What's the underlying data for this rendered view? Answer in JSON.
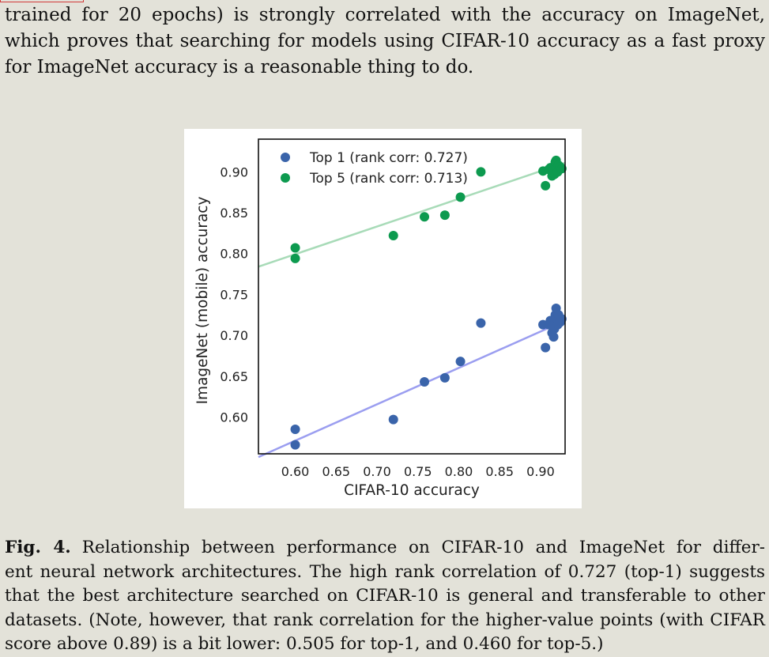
{
  "intro": {
    "lines": [
      "trained for 20 epochs) is strongly correlated with the accuracy on ImageNet,",
      "which proves that searching for models using CIFAR-10 accuracy as a fast proxy",
      "for ImageNet accuracy is a reasonable thing to do."
    ]
  },
  "caption": {
    "label": "Fig. 4.",
    "lines": [
      "Relationship between performance on CIFAR-10 and ImageNet for differ-",
      "ent neural network architectures. The high rank correlation of 0.727 (top-1) suggests",
      "that the best architecture searched on CIFAR-10 is general and transferable to other",
      "datasets. (Note, however, that rank correlation for the higher-value points (with CIFAR",
      "score above 0.89) is a bit lower: 0.505 for top-1, and 0.460 for top-5.)"
    ]
  },
  "chart_data": {
    "type": "scatter",
    "title": "",
    "xlabel": "CIFAR-10 accuracy",
    "ylabel": "ImageNet (mobile) accuracy",
    "xlim": [
      0.555,
      0.93
    ],
    "ylim": [
      0.555,
      0.94
    ],
    "x_ticks": [
      "0.60",
      "0.65",
      "0.70",
      "0.75",
      "0.80",
      "0.85",
      "0.90"
    ],
    "y_ticks": [
      "0.60",
      "0.65",
      "0.70",
      "0.75",
      "0.80",
      "0.85",
      "0.90"
    ],
    "grid": false,
    "legend_position": "top-left",
    "series": [
      {
        "name": "Top 1 (rank corr: 0.727)",
        "color": "#3a64aa",
        "fit_line": {
          "x": [
            0.555,
            0.93
          ],
          "y": [
            0.551,
            0.718
          ],
          "color": "#9b9ef0"
        },
        "points": [
          [
            0.6,
            0.585
          ],
          [
            0.6,
            0.566
          ],
          [
            0.72,
            0.597
          ],
          [
            0.758,
            0.643
          ],
          [
            0.783,
            0.648
          ],
          [
            0.802,
            0.668
          ],
          [
            0.827,
            0.715
          ],
          [
            0.903,
            0.713
          ],
          [
            0.906,
            0.685
          ],
          [
            0.91,
            0.713
          ],
          [
            0.912,
            0.718
          ],
          [
            0.914,
            0.703
          ],
          [
            0.915,
            0.712
          ],
          [
            0.916,
            0.698
          ],
          [
            0.917,
            0.708
          ],
          [
            0.918,
            0.725
          ],
          [
            0.919,
            0.733
          ],
          [
            0.92,
            0.72
          ],
          [
            0.921,
            0.713
          ],
          [
            0.922,
            0.725
          ],
          [
            0.924,
            0.716
          ],
          [
            0.926,
            0.72
          ]
        ]
      },
      {
        "name": "Top 5 (rank corr: 0.713)",
        "color": "#0d9a4f",
        "fit_line": {
          "x": [
            0.555,
            0.93
          ],
          "y": [
            0.784,
            0.911
          ],
          "color": "#a8dbb8"
        },
        "points": [
          [
            0.6,
            0.807
          ],
          [
            0.6,
            0.794
          ],
          [
            0.72,
            0.822
          ],
          [
            0.758,
            0.845
          ],
          [
            0.783,
            0.847
          ],
          [
            0.802,
            0.869
          ],
          [
            0.827,
            0.9
          ],
          [
            0.903,
            0.901
          ],
          [
            0.906,
            0.883
          ],
          [
            0.91,
            0.903
          ],
          [
            0.912,
            0.905
          ],
          [
            0.914,
            0.895
          ],
          [
            0.915,
            0.898
          ],
          [
            0.916,
            0.902
          ],
          [
            0.917,
            0.897
          ],
          [
            0.918,
            0.912
          ],
          [
            0.919,
            0.914
          ],
          [
            0.92,
            0.905
          ],
          [
            0.921,
            0.9
          ],
          [
            0.922,
            0.908
          ],
          [
            0.924,
            0.906
          ],
          [
            0.926,
            0.904
          ]
        ]
      }
    ]
  }
}
